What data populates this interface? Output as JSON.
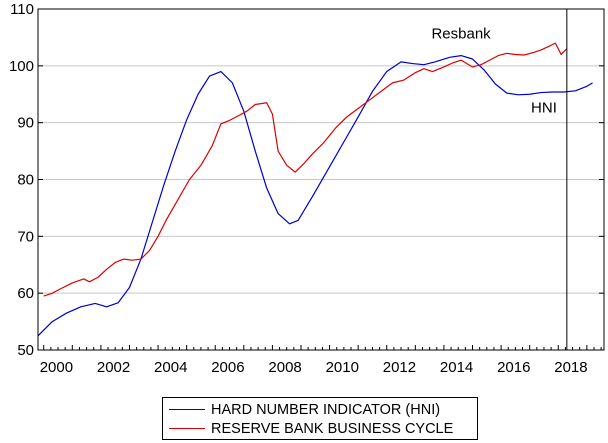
{
  "chart_data": {
    "type": "line",
    "title": "",
    "xlabel": "",
    "ylabel": "",
    "xlim": [
      1999.8,
      2019.6
    ],
    "ylim": [
      50,
      110
    ],
    "yticks": [
      50,
      60,
      70,
      80,
      90,
      100,
      110
    ],
    "xtick_labels": [
      "2000",
      "2002",
      "2004",
      "2006",
      "2008",
      "2010",
      "2012",
      "2014",
      "2016",
      "2018"
    ],
    "grid": "horizontal",
    "vertical_marker_x": 2018.3,
    "annotations": [
      {
        "text": "Resbank",
        "x": 2014.6,
        "y": 104.8
      },
      {
        "text": "HNI",
        "x": 2017.5,
        "y": 91.8
      }
    ],
    "legend_position": "bottom",
    "series": [
      {
        "name": "HARD NUMBER INDICATOR (HNI)",
        "color": "#0000cc",
        "x": [
          1999.8,
          2000.3,
          2000.8,
          2001.3,
          2001.8,
          2002.2,
          2002.6,
          2003.0,
          2003.4,
          2003.8,
          2004.2,
          2004.6,
          2005.0,
          2005.4,
          2005.8,
          2006.2,
          2006.6,
          2007.0,
          2007.4,
          2007.8,
          2008.2,
          2008.6,
          2008.9,
          2009.1,
          2009.4,
          2009.8,
          2010.2,
          2010.6,
          2011.0,
          2011.5,
          2012.0,
          2012.5,
          2012.9,
          2013.3,
          2013.7,
          2014.2,
          2014.6,
          2015.0,
          2015.4,
          2015.8,
          2016.2,
          2016.6,
          2017.0,
          2017.4,
          2017.8,
          2018.2,
          2018.6,
          2019.0,
          2019.2
        ],
        "values": [
          52.5,
          55.0,
          56.5,
          57.6,
          58.2,
          57.6,
          58.3,
          61.0,
          66.0,
          72.5,
          79.0,
          85.0,
          90.5,
          95.0,
          98.2,
          99.0,
          97.0,
          92.0,
          85.0,
          78.5,
          74.0,
          72.2,
          72.8,
          74.5,
          77.0,
          80.5,
          84.0,
          87.5,
          91.0,
          95.5,
          99.0,
          100.7,
          100.4,
          100.2,
          100.7,
          101.5,
          101.8,
          101.2,
          99.3,
          96.8,
          95.2,
          94.9,
          95.0,
          95.3,
          95.4,
          95.4,
          95.6,
          96.4,
          97.0
        ]
      },
      {
        "name": "RESERVE BANK BUSINESS CYCLE",
        "color": "#dd0000",
        "x": [
          2000.0,
          2000.3,
          2000.6,
          2001.0,
          2001.4,
          2001.6,
          2001.9,
          2002.2,
          2002.5,
          2002.8,
          2003.1,
          2003.4,
          2003.7,
          2004.0,
          2004.3,
          2004.7,
          2005.1,
          2005.5,
          2005.9,
          2006.2,
          2006.5,
          2006.8,
          2007.1,
          2007.4,
          2007.8,
          2008.0,
          2008.2,
          2008.5,
          2008.8,
          2009.1,
          2009.4,
          2009.8,
          2010.2,
          2010.6,
          2011.0,
          2011.4,
          2011.8,
          2012.2,
          2012.6,
          2013.0,
          2013.3,
          2013.6,
          2014.0,
          2014.3,
          2014.6,
          2015.0,
          2015.3,
          2015.6,
          2015.9,
          2016.2,
          2016.5,
          2016.8,
          2017.1,
          2017.4,
          2017.7,
          2017.9,
          2018.1,
          2018.3
        ],
        "values": [
          59.5,
          60.0,
          60.8,
          61.8,
          62.5,
          62.0,
          62.8,
          64.2,
          65.4,
          66.0,
          65.8,
          66.0,
          67.5,
          70.0,
          73.0,
          76.5,
          80.0,
          82.5,
          86.0,
          89.8,
          90.4,
          91.2,
          92.0,
          93.2,
          93.5,
          91.5,
          85.0,
          82.5,
          81.3,
          82.8,
          84.5,
          86.5,
          89.0,
          91.0,
          92.5,
          94.0,
          95.5,
          97.0,
          97.5,
          98.8,
          99.5,
          99.0,
          99.8,
          100.5,
          101.0,
          99.8,
          100.2,
          101.0,
          101.8,
          102.2,
          102.0,
          101.9,
          102.3,
          102.8,
          103.5,
          104.0,
          102.0,
          103.0
        ]
      }
    ]
  }
}
